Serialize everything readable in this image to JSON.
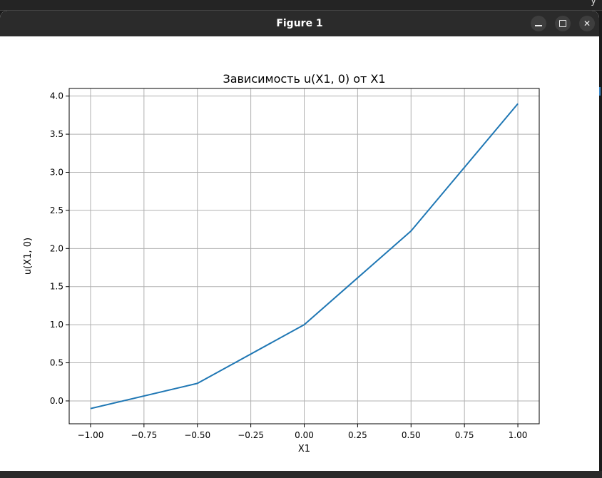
{
  "background": {
    "corner_glyph": "y"
  },
  "window": {
    "title": "Figure 1",
    "buttons": {
      "minimize": "minimize-icon",
      "maximize": "maximize-icon",
      "close_label": "✕"
    }
  },
  "chart_data": {
    "type": "line",
    "title": "Зависимость u(X1, 0) от X1",
    "xlabel": "X1",
    "ylabel": "u(X1, 0)",
    "xlim": [
      -1.1,
      1.1
    ],
    "ylim": [
      -0.3,
      4.1
    ],
    "grid": true,
    "line_color": "#1f77b4",
    "x_ticks": [
      -1.0,
      -0.75,
      -0.5,
      -0.25,
      0.0,
      0.25,
      0.5,
      0.75,
      1.0
    ],
    "x_tick_labels": [
      "−1.00",
      "−0.75",
      "−0.50",
      "−0.25",
      "0.00",
      "0.25",
      "0.50",
      "0.75",
      "1.00"
    ],
    "y_ticks": [
      0.0,
      0.5,
      1.0,
      1.5,
      2.0,
      2.5,
      3.0,
      3.5,
      4.0
    ],
    "y_tick_labels": [
      "0.0",
      "0.5",
      "1.0",
      "1.5",
      "2.0",
      "2.5",
      "3.0",
      "3.5",
      "4.0"
    ],
    "series": [
      {
        "name": "u(X1, 0)",
        "x": [
          -1.0,
          -0.5,
          0.0,
          0.5,
          1.0
        ],
        "y": [
          -0.1,
          0.23,
          1.0,
          2.23,
          3.9
        ]
      }
    ]
  }
}
